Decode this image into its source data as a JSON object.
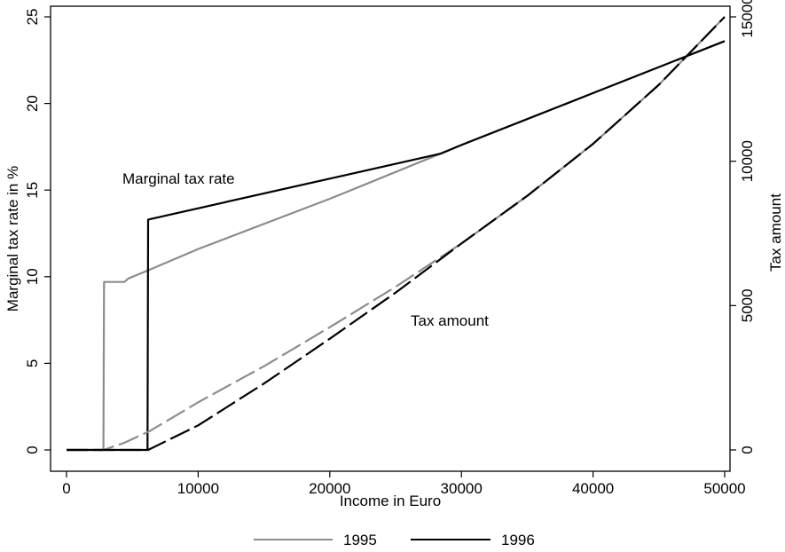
{
  "chart_data": {
    "type": "line",
    "xlabel": "Income in Euro",
    "ylabel_left": "Marginal tax rate in %",
    "ylabel_right": "Tax amount",
    "xlim": [
      0,
      50000
    ],
    "ylim_left": [
      0,
      25
    ],
    "ylim_right": [
      0,
      15000
    ],
    "x_ticks": [
      "0",
      "10000",
      "20000",
      "30000",
      "40000",
      "50000"
    ],
    "y_left_ticks": [
      "0",
      "5",
      "10",
      "15",
      "20",
      "25"
    ],
    "y_right_ticks": [
      "0",
      "5000",
      "10000",
      "15000"
    ],
    "grid": false,
    "legend_position": "bottom",
    "annotations": [
      {
        "text": "Marginal tax rate",
        "x": 4300,
        "y": 15.4
      },
      {
        "text": "Tax amount",
        "x": 26000,
        "y": 7.4
      }
    ],
    "colors": {
      "1995": "#8c8c8c",
      "1996": "#000000"
    },
    "series": [
      {
        "name": "1995",
        "measure": "marginal rate",
        "axis": "left",
        "style": "solid",
        "x": [
          0,
          2800,
          2850,
          4400,
          4700,
          6300,
          10000,
          20000,
          28400,
          30000,
          40000,
          50000
        ],
        "y": [
          0,
          0,
          9.7,
          9.7,
          9.9,
          10.4,
          11.6,
          14.5,
          17.1,
          17.6,
          20.6,
          23.6
        ]
      },
      {
        "name": "1996",
        "measure": "marginal rate",
        "axis": "left",
        "style": "solid",
        "x": [
          0,
          6150,
          6200,
          28400,
          30000,
          40000,
          50000
        ],
        "y": [
          0,
          0,
          13.3,
          17.1,
          17.6,
          20.6,
          23.6
        ]
      },
      {
        "name": "1995",
        "measure": "tax amount",
        "axis": "right",
        "style": "dashed",
        "x": [
          0,
          2800,
          4400,
          6300,
          10000,
          15000,
          20000,
          25000,
          30000,
          35000,
          40000,
          45000,
          50000
        ],
        "y": [
          0,
          0,
          250,
          650,
          1650,
          2900,
          4250,
          5650,
          7150,
          8800,
          10600,
          12650,
          15000
        ]
      },
      {
        "name": "1996",
        "measure": "tax amount",
        "axis": "right",
        "style": "dashed",
        "x": [
          0,
          6200,
          10000,
          15000,
          20000,
          25000,
          30000,
          35000,
          40000,
          45000,
          50000
        ],
        "y": [
          0,
          0,
          850,
          2300,
          3850,
          5450,
          7150,
          8800,
          10600,
          12650,
          15000
        ]
      }
    ],
    "legend": [
      {
        "label": "1995"
      },
      {
        "label": "1996"
      }
    ]
  }
}
